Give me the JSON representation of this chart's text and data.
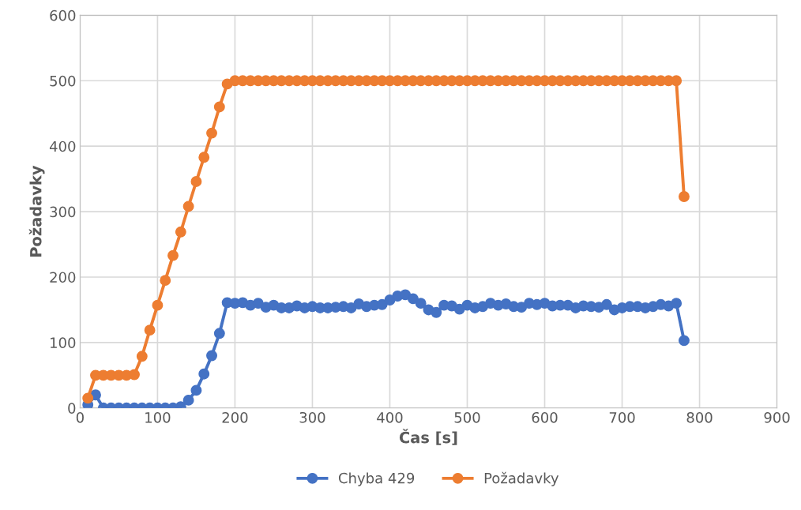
{
  "chart_data": {
    "type": "line",
    "xlabel": "Čas [s]",
    "ylabel": "Požadavky",
    "x": [
      10,
      20,
      30,
      40,
      50,
      60,
      70,
      80,
      90,
      100,
      110,
      120,
      130,
      140,
      150,
      160,
      170,
      180,
      190,
      200,
      210,
      220,
      230,
      240,
      250,
      260,
      270,
      280,
      290,
      300,
      310,
      320,
      330,
      340,
      350,
      360,
      370,
      380,
      390,
      400,
      410,
      420,
      430,
      440,
      450,
      460,
      470,
      480,
      490,
      500,
      510,
      520,
      530,
      540,
      550,
      560,
      570,
      580,
      590,
      600,
      610,
      620,
      630,
      640,
      650,
      660,
      670,
      680,
      690,
      700,
      710,
      720,
      730,
      740,
      750,
      760,
      770,
      780
    ],
    "series": [
      {
        "name": "Chyba 429",
        "color": "#4472c4",
        "values": [
          5,
          20,
          0,
          0,
          0,
          0,
          0,
          0,
          0,
          0,
          0,
          0,
          2,
          12,
          27,
          52,
          80,
          114,
          161,
          160,
          161,
          157,
          160,
          154,
          157,
          153,
          153,
          156,
          153,
          155,
          153,
          153,
          154,
          155,
          153,
          159,
          155,
          157,
          158,
          165,
          171,
          173,
          167,
          160,
          150,
          146,
          157,
          156,
          151,
          157,
          153,
          155,
          160,
          157,
          159,
          155,
          154,
          160,
          158,
          160,
          156,
          157,
          157,
          153,
          156,
          155,
          154,
          158,
          150,
          153,
          155,
          155,
          153,
          155,
          158,
          156,
          160,
          103
        ]
      },
      {
        "name": "Požadavky",
        "color": "#ed7d31",
        "values": [
          15,
          50,
          50,
          50,
          50,
          50,
          51,
          79,
          119,
          157,
          195,
          233,
          269,
          308,
          346,
          383,
          420,
          460,
          495,
          500,
          500,
          500,
          500,
          500,
          500,
          500,
          500,
          500,
          500,
          500,
          500,
          500,
          500,
          500,
          500,
          500,
          500,
          500,
          500,
          500,
          500,
          500,
          500,
          500,
          500,
          500,
          500,
          500,
          500,
          500,
          500,
          500,
          500,
          500,
          500,
          500,
          500,
          500,
          500,
          500,
          500,
          500,
          500,
          500,
          500,
          500,
          500,
          500,
          500,
          500,
          500,
          500,
          500,
          500,
          500,
          500,
          500,
          323
        ]
      }
    ],
    "xlim": [
      0,
      900
    ],
    "xticks": [
      0,
      100,
      200,
      300,
      400,
      500,
      600,
      700,
      800,
      900
    ],
    "ylim": [
      0,
      600
    ],
    "yticks": [
      0,
      100,
      200,
      300,
      400,
      500,
      600
    ],
    "grid": true,
    "legend": "bottom",
    "marker": "circle",
    "line_style": "solid"
  }
}
